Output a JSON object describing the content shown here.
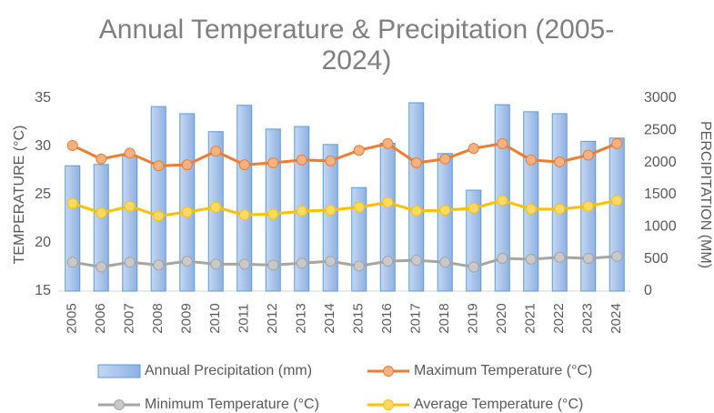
{
  "chart_data": {
    "type": "bar-line",
    "title": "Annual Temperature & Precipitation (2005-2024)",
    "y_label": "TEMPERATURE (°C)",
    "y2_label": "PERCIPITATION (MM)",
    "categories": [
      "2005",
      "2006",
      "2007",
      "2008",
      "2009",
      "2010",
      "2011",
      "2012",
      "2013",
      "2014",
      "2015",
      "2016",
      "2017",
      "2018",
      "2019",
      "2020",
      "2021",
      "2022",
      "2023",
      "2024"
    ],
    "ylim": [
      15,
      35
    ],
    "yticks": [
      15,
      20,
      25,
      30,
      35
    ],
    "y2lim": [
      0,
      3000
    ],
    "y2ticks": [
      0,
      500,
      1000,
      1500,
      2000,
      2500,
      3000
    ],
    "legend": "bottom",
    "series": [
      {
        "name": "Annual Precipitation (mm)",
        "type": "bar",
        "axis": "y2",
        "color": "#a9c4eb",
        "values": [
          1950,
          1970,
          2100,
          2870,
          2760,
          2480,
          2890,
          2520,
          2560,
          2280,
          1610,
          2300,
          2930,
          2140,
          1570,
          2900,
          2790,
          2760,
          2330,
          2380
        ]
      },
      {
        "name": "Maximum Temperature (°C)",
        "type": "line",
        "color": "#ed7d31",
        "values": [
          30.1,
          28.7,
          29.3,
          28.0,
          28.1,
          29.5,
          28.1,
          28.3,
          28.6,
          28.5,
          29.6,
          30.3,
          28.3,
          28.7,
          29.8,
          30.3,
          28.6,
          28.4,
          29.1,
          30.3
        ]
      },
      {
        "name": "Minimum Temperature (°C)",
        "type": "line",
        "color": "#a5a5a5",
        "values": [
          18.0,
          17.5,
          18.0,
          17.7,
          18.1,
          17.8,
          17.8,
          17.7,
          17.9,
          18.1,
          17.6,
          18.1,
          18.2,
          18.0,
          17.5,
          18.4,
          18.3,
          18.5,
          18.4,
          18.6
        ]
      },
      {
        "name": "Average Temperature (°C)",
        "type": "line",
        "color": "#ffc000",
        "values": [
          24.1,
          23.1,
          23.8,
          22.8,
          23.2,
          23.7,
          22.9,
          23.0,
          23.3,
          23.4,
          23.7,
          24.2,
          23.3,
          23.4,
          23.6,
          24.4,
          23.5,
          23.5,
          23.8,
          24.4
        ]
      }
    ]
  }
}
